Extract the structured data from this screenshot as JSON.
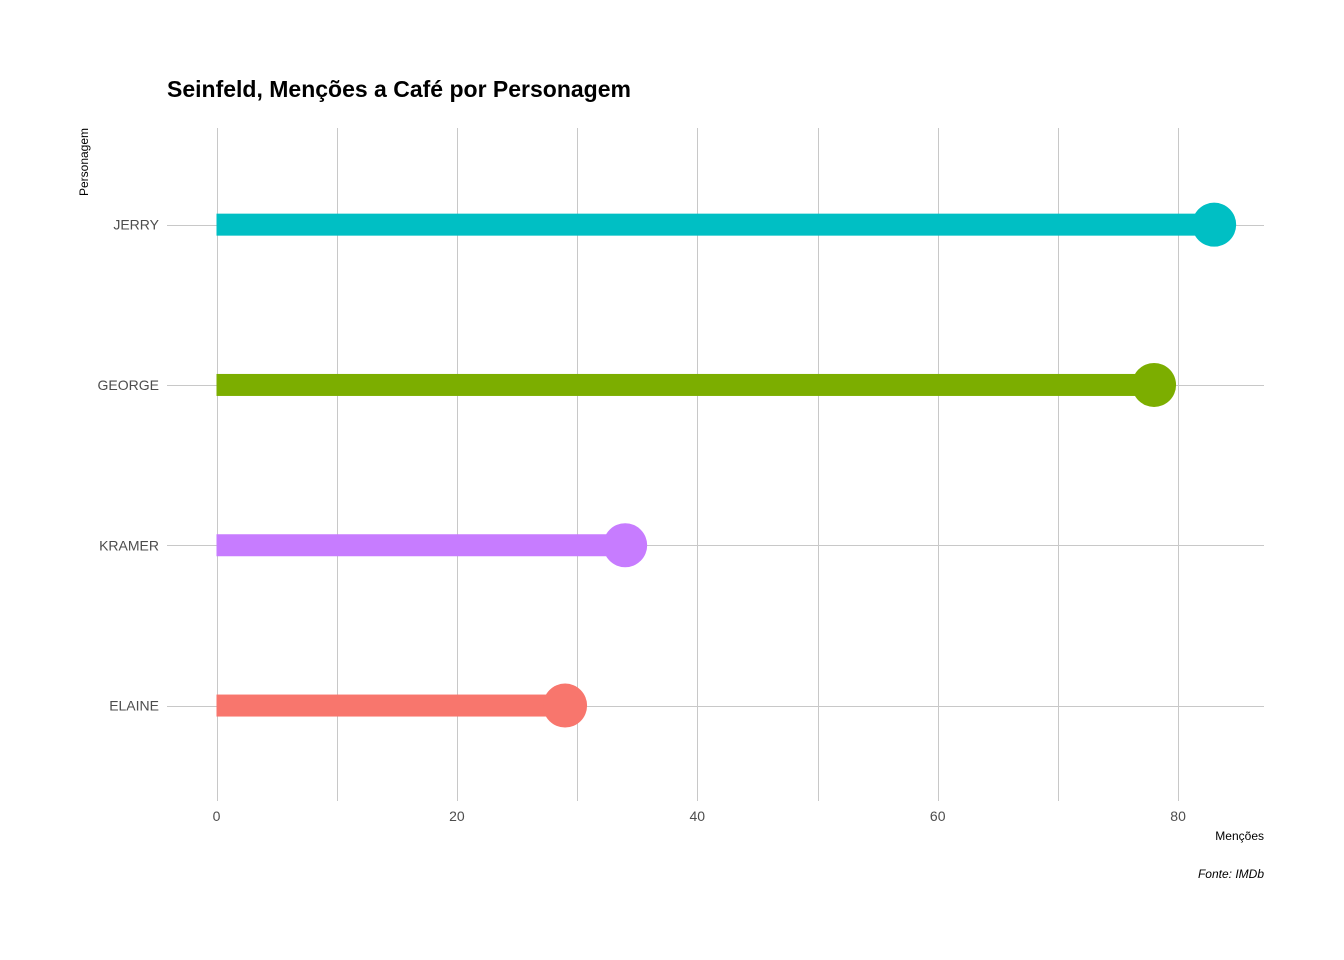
{
  "chart_data": {
    "type": "bar",
    "title": "Seinfeld, Menções a Café por Personagem",
    "xlabel": "Menções",
    "ylabel": "Personagem",
    "caption": "Fonte: IMDb",
    "orientation": "horizontal",
    "style": "lollipop",
    "categories": [
      "JERRY",
      "GEORGE",
      "KRAMER",
      "ELAINE"
    ],
    "values": [
      83,
      78,
      34,
      29
    ],
    "colors": [
      "#00BFC4",
      "#7CAE00",
      "#C77CFF",
      "#F8766D"
    ],
    "xlim": [
      0,
      87
    ],
    "x_ticks": [
      0,
      20,
      40,
      60,
      80
    ],
    "x_tick_labels": [
      "0",
      "20",
      "40",
      "60",
      "80"
    ],
    "grid": true,
    "legend": "none"
  }
}
